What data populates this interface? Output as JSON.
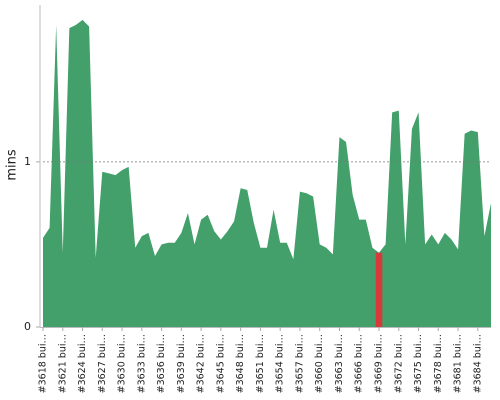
{
  "chart_data": {
    "type": "area",
    "y_label": "mins",
    "categories": [
      "#3618 bui…",
      null,
      null,
      "#3621 bui…",
      null,
      null,
      "#3624 bui…",
      null,
      null,
      "#3627 bui…",
      null,
      null,
      "#3630 bui…",
      null,
      null,
      "#3633 bui…",
      null,
      null,
      "#3636 bui…",
      null,
      null,
      "#3639 bui…",
      null,
      null,
      "#3642 bui…",
      null,
      null,
      "#3645 bui…",
      null,
      null,
      "#3648 bui…",
      null,
      null,
      "#3651 bui…",
      null,
      null,
      "#3654 bui…",
      null,
      null,
      "#3657 bui…",
      null,
      null,
      "#3660 bui…",
      null,
      null,
      "#3663 bui…",
      null,
      null,
      "#3666 bui…",
      null,
      null,
      "#3669 bui…",
      null,
      null,
      "#3672 bui…",
      null,
      null,
      "#3675 bui…",
      null,
      null,
      "#3678 bui…",
      null,
      null,
      "#3681 bui…",
      null,
      null,
      "#3684 bui…",
      null,
      null
    ],
    "values": [
      0.54,
      0.6,
      1.83,
      0.45,
      1.81,
      1.83,
      1.86,
      1.82,
      0.42,
      0.94,
      0.93,
      0.92,
      0.95,
      0.97,
      0.48,
      0.55,
      0.57,
      0.43,
      0.5,
      0.51,
      0.51,
      0.57,
      0.69,
      0.5,
      0.65,
      0.68,
      0.58,
      0.53,
      0.58,
      0.64,
      0.84,
      0.83,
      0.63,
      0.48,
      0.48,
      0.71,
      0.51,
      0.51,
      0.41,
      0.82,
      0.81,
      0.79,
      0.5,
      0.48,
      0.44,
      1.15,
      1.12,
      0.8,
      0.65,
      0.65,
      0.48,
      0.45,
      0.5,
      1.3,
      1.31,
      0.5,
      1.2,
      1.3,
      0.5,
      0.56,
      0.5,
      0.57,
      0.53,
      0.47,
      1.17,
      1.19,
      1.18,
      0.55,
      0.75
    ],
    "color": "#43a06b",
    "highlight": {
      "index": 51,
      "color": "#d63a3a"
    },
    "ylim": [
      0,
      1.95
    ],
    "yticks": [
      0,
      1
    ],
    "grid": true
  }
}
